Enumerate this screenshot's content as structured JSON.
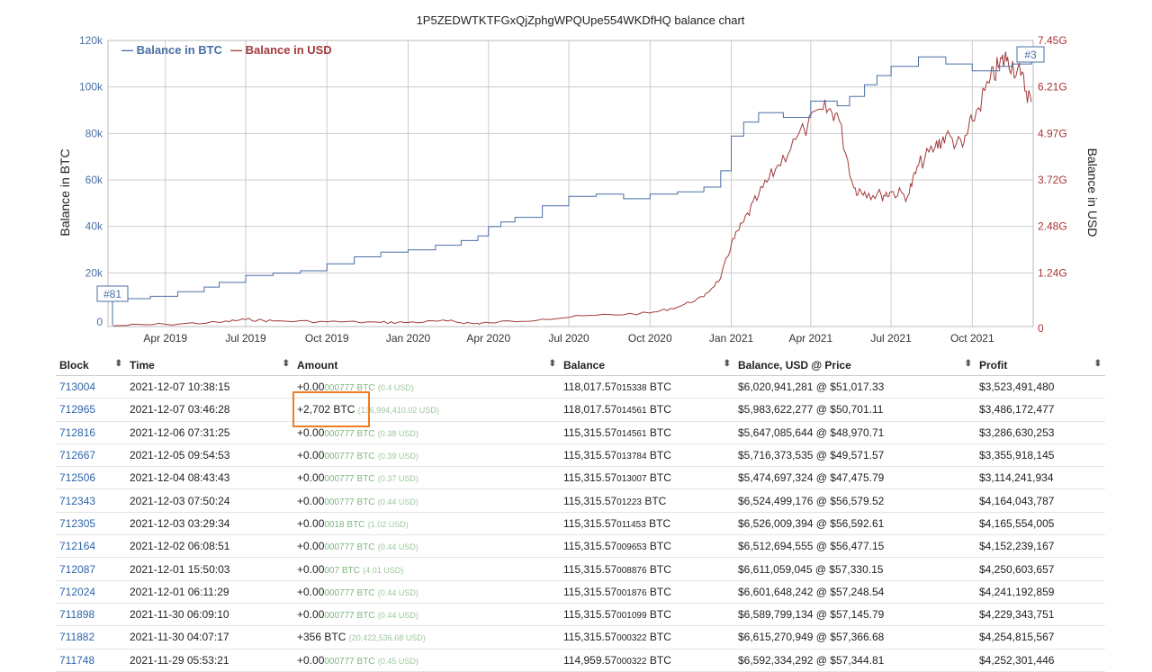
{
  "chart": {
    "title": "1P5ZEDWTKTFGxQjZphgWPQUpe554WKDfHQ balance chart",
    "legend_btc": "— Balance in BTC",
    "legend_usd": "— Balance in USD",
    "marker_start": "#81",
    "marker_end": "#3",
    "colors": {
      "btc": "#4a6fa5",
      "usd": "#a33a3a",
      "grid": "#cccccc",
      "highlight": "#ef7d25"
    }
  },
  "chart_data": {
    "type": "line",
    "ylabel": "Balance in BTC",
    "ylabel_right": "Balance in USD",
    "yticks_left": [
      "0",
      "20k",
      "40k",
      "60k",
      "80k",
      "100k",
      "120k"
    ],
    "yticks_right": [
      "0",
      "1.24G",
      "2.48G",
      "3.72G",
      "4.97G",
      "6.21G",
      "7.45G"
    ],
    "xticks": [
      "Apr 2019",
      "Jul 2019",
      "Oct 2019",
      "Jan 2020",
      "Apr 2020",
      "Jul 2020",
      "Oct 2020",
      "Jan 2021",
      "Apr 2021",
      "Jul 2021",
      "Oct 2021"
    ],
    "ylim_left": [
      0,
      120000
    ],
    "ylim_right": [
      0,
      7450000000
    ],
    "legend": "top-left",
    "grid": true,
    "series": [
      {
        "name": "Balance in BTC",
        "x": [
          "2019-02-01",
          "2019-03-15",
          "2019-04-15",
          "2019-05-15",
          "2019-06-01",
          "2019-07-01",
          "2019-08-01",
          "2019-09-01",
          "2019-10-01",
          "2019-11-01",
          "2019-12-01",
          "2020-01-01",
          "2020-02-01",
          "2020-03-01",
          "2020-03-20",
          "2020-04-01",
          "2020-04-15",
          "2020-05-01",
          "2020-06-01",
          "2020-07-01",
          "2020-08-01",
          "2020-09-01",
          "2020-10-01",
          "2020-11-01",
          "2020-12-01",
          "2020-12-20",
          "2021-01-01",
          "2021-01-15",
          "2021-02-01",
          "2021-03-01",
          "2021-04-01",
          "2021-05-01",
          "2021-05-15",
          "2021-06-01",
          "2021-06-15",
          "2021-07-01",
          "2021-08-01",
          "2021-09-01",
          "2021-10-01",
          "2021-11-01",
          "2021-11-15",
          "2021-12-07"
        ],
        "y": [
          12000,
          13000,
          15000,
          17000,
          19000,
          22000,
          23000,
          24000,
          27000,
          30000,
          32000,
          33000,
          35000,
          37000,
          39000,
          43000,
          45000,
          47000,
          52000,
          56000,
          57000,
          55000,
          57000,
          58000,
          60000,
          67000,
          82000,
          88000,
          92000,
          90000,
          97000,
          95000,
          99000,
          104000,
          108000,
          112000,
          116000,
          113000,
          110000,
          112000,
          113000,
          118017
        ]
      },
      {
        "name": "Balance in USD",
        "x": [
          "2019-02-01",
          "2019-04-01",
          "2019-06-01",
          "2019-07-01",
          "2019-08-01",
          "2019-10-01",
          "2019-12-01",
          "2020-01-01",
          "2020-02-15",
          "2020-03-15",
          "2020-04-01",
          "2020-06-01",
          "2020-08-01",
          "2020-10-01",
          "2020-11-01",
          "2020-12-01",
          "2020-12-20",
          "2021-01-01",
          "2021-01-15",
          "2021-02-01",
          "2021-02-20",
          "2021-03-15",
          "2021-04-15",
          "2021-05-01",
          "2021-05-20",
          "2021-06-01",
          "2021-06-20",
          "2021-07-01",
          "2021-07-20",
          "2021-08-01",
          "2021-08-20",
          "2021-09-01",
          "2021-09-20",
          "2021-10-01",
          "2021-10-20",
          "2021-11-01",
          "2021-11-10",
          "2021-11-25",
          "2021-12-07"
        ],
        "y": [
          20000000,
          60000000,
          110000000,
          190000000,
          150000000,
          130000000,
          110000000,
          110000000,
          150000000,
          80000000,
          100000000,
          200000000,
          300000000,
          360000000,
          520000000,
          800000000,
          1300000000,
          2200000000,
          2800000000,
          3500000000,
          4200000000,
          5000000000,
          5800000000,
          5700000000,
          3700000000,
          3600000000,
          3500000000,
          3600000000,
          3500000000,
          4300000000,
          4800000000,
          5100000000,
          4800000000,
          5500000000,
          6500000000,
          7000000000,
          7200000000,
          6700000000,
          6000000000
        ]
      }
    ]
  },
  "table": {
    "headers": {
      "block": "Block",
      "time": "Time",
      "amount": "Amount",
      "balance": "Balance",
      "balance_usd": "Balance, USD @ Price",
      "profit": "Profit"
    },
    "sort_icon": "⬍",
    "rows": [
      {
        "block": "713004",
        "time": "2021-12-07 10:38:15",
        "amt_main": "+0.00",
        "amt_small": "000777",
        "amt_unit": " BTC",
        "amt_usd": "(0.4 USD)",
        "bal_main": "118,017.57",
        "bal_small": "015338",
        "bal_unit": " BTC",
        "bal_usd": "$6,020,941,281 @ $51,017.33",
        "profit": "$3,523,491,480"
      },
      {
        "block": "712965",
        "time": "2021-12-07 03:46:28",
        "amt_main": "+2,702 BTC",
        "amt_small": "",
        "amt_unit": "",
        "amt_usd": "(136,994,410.02 USD)",
        "bal_main": "118,017.57",
        "bal_small": "014561",
        "bal_unit": " BTC",
        "bal_usd": "$5,983,622,277 @ $50,701.11",
        "profit": "$3,486,172,477"
      },
      {
        "block": "712816",
        "time": "2021-12-06 07:31:25",
        "amt_main": "+0.00",
        "amt_small": "000777",
        "amt_unit": " BTC",
        "amt_usd": "(0.38 USD)",
        "bal_main": "115,315.57",
        "bal_small": "014561",
        "bal_unit": " BTC",
        "bal_usd": "$5,647,085,644 @ $48,970.71",
        "profit": "$3,286,630,253"
      },
      {
        "block": "712667",
        "time": "2021-12-05 09:54:53",
        "amt_main": "+0.00",
        "amt_small": "000777",
        "amt_unit": " BTC",
        "amt_usd": "(0.39 USD)",
        "bal_main": "115,315.57",
        "bal_small": "013784",
        "bal_unit": " BTC",
        "bal_usd": "$5,716,373,535 @ $49,571.57",
        "profit": "$3,355,918,145"
      },
      {
        "block": "712506",
        "time": "2021-12-04 08:43:43",
        "amt_main": "+0.00",
        "amt_small": "000777",
        "amt_unit": " BTC",
        "amt_usd": "(0.37 USD)",
        "bal_main": "115,315.57",
        "bal_small": "013007",
        "bal_unit": " BTC",
        "bal_usd": "$5,474,697,324 @ $47,475.79",
        "profit": "$3,114,241,934"
      },
      {
        "block": "712343",
        "time": "2021-12-03 07:50:24",
        "amt_main": "+0.00",
        "amt_small": "000777",
        "amt_unit": " BTC",
        "amt_usd": "(0.44 USD)",
        "bal_main": "115,315.57",
        "bal_small": "01223",
        "bal_unit": " BTC",
        "bal_usd": "$6,524,499,176 @ $56,579.52",
        "profit": "$4,164,043,787"
      },
      {
        "block": "712305",
        "time": "2021-12-03 03:29:34",
        "amt_main": "+0.00",
        "amt_small": "0018",
        "amt_unit": " BTC",
        "amt_usd": "(1.02 USD)",
        "bal_main": "115,315.57",
        "bal_small": "011453",
        "bal_unit": " BTC",
        "bal_usd": "$6,526,009,394 @ $56,592.61",
        "profit": "$4,165,554,005"
      },
      {
        "block": "712164",
        "time": "2021-12-02 06:08:51",
        "amt_main": "+0.00",
        "amt_small": "000777",
        "amt_unit": " BTC",
        "amt_usd": "(0.44 USD)",
        "bal_main": "115,315.57",
        "bal_small": "009653",
        "bal_unit": " BTC",
        "bal_usd": "$6,512,694,555 @ $56,477.15",
        "profit": "$4,152,239,167"
      },
      {
        "block": "712087",
        "time": "2021-12-01 15:50:03",
        "amt_main": "+0.00",
        "amt_small": "007",
        "amt_unit": " BTC",
        "amt_usd": "(4.01 USD)",
        "bal_main": "115,315.57",
        "bal_small": "008876",
        "bal_unit": " BTC",
        "bal_usd": "$6,611,059,045 @ $57,330.15",
        "profit": "$4,250,603,657"
      },
      {
        "block": "712024",
        "time": "2021-12-01 06:11:29",
        "amt_main": "+0.00",
        "amt_small": "000777",
        "amt_unit": " BTC",
        "amt_usd": "(0.44 USD)",
        "bal_main": "115,315.57",
        "bal_small": "001876",
        "bal_unit": " BTC",
        "bal_usd": "$6,601,648,242 @ $57,248.54",
        "profit": "$4,241,192,859"
      },
      {
        "block": "711898",
        "time": "2021-11-30 06:09:10",
        "amt_main": "+0.00",
        "amt_small": "000777",
        "amt_unit": " BTC",
        "amt_usd": "(0.44 USD)",
        "bal_main": "115,315.57",
        "bal_small": "001099",
        "bal_unit": " BTC",
        "bal_usd": "$6,589,799,134 @ $57,145.79",
        "profit": "$4,229,343,751"
      },
      {
        "block": "711882",
        "time": "2021-11-30 04:07:17",
        "amt_main": "+356 BTC",
        "amt_small": "",
        "amt_unit": "",
        "amt_usd": "(20,422,536.68 USD)",
        "bal_main": "115,315.57",
        "bal_small": "000322",
        "bal_unit": " BTC",
        "bal_usd": "$6,615,270,949 @ $57,366.68",
        "profit": "$4,254,815,567"
      },
      {
        "block": "711748",
        "time": "2021-11-29 05:53:21",
        "amt_main": "+0.00",
        "amt_small": "000777",
        "amt_unit": " BTC",
        "amt_usd": "(0.45 USD)",
        "bal_main": "114,959.57",
        "bal_small": "000322",
        "bal_unit": " BTC",
        "bal_usd": "$6,592,334,292 @ $57,344.81",
        "profit": "$4,252,301,446"
      }
    ]
  }
}
